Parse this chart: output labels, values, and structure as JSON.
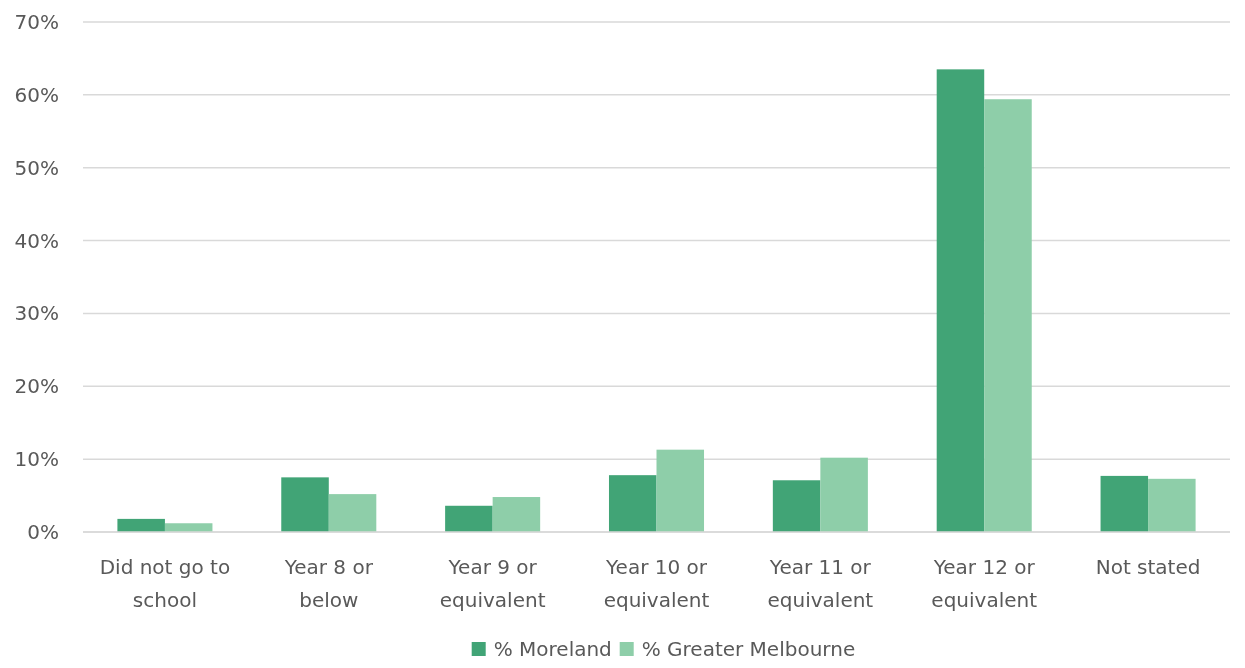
{
  "chart_data": {
    "type": "bar",
    "categories": [
      "Did not go to school",
      "Year 8 or below",
      "Year 9 or equivalent",
      "Year 10 or equivalent",
      "Year 11 or equivalent",
      "Year 12 or equivalent",
      "Not stated"
    ],
    "series": [
      {
        "name": "% Moreland",
        "color": "#41a476",
        "values": [
          1.8,
          7.5,
          3.6,
          7.8,
          7.1,
          63.5,
          7.7
        ]
      },
      {
        "name": "% Greater Melbourne",
        "color": "#8ecea9",
        "values": [
          1.2,
          5.2,
          4.8,
          11.3,
          10.2,
          59.4,
          7.3
        ]
      }
    ],
    "ylim": [
      0,
      70
    ],
    "yticks": [
      {
        "value": 0,
        "label": "0%"
      },
      {
        "value": 10,
        "label": "10%"
      },
      {
        "value": 20,
        "label": "20%"
      },
      {
        "value": 30,
        "label": "30%"
      },
      {
        "value": 40,
        "label": "40%"
      },
      {
        "value": 50,
        "label": "50%"
      },
      {
        "value": 60,
        "label": "60%"
      },
      {
        "value": 70,
        "label": "70%"
      }
    ],
    "grid": "y",
    "legend": "bottom"
  }
}
